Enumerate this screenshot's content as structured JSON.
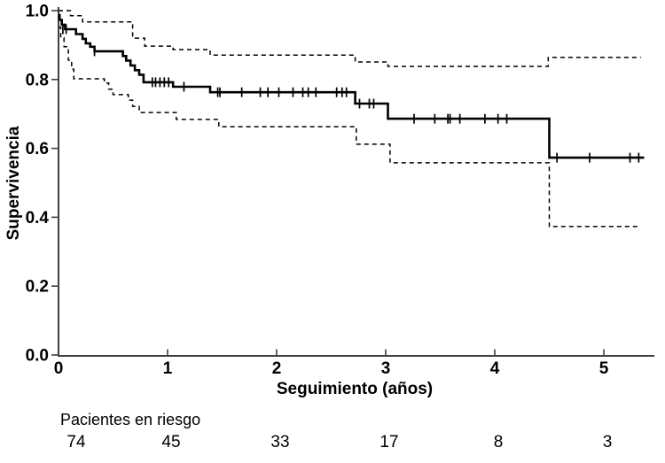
{
  "chart_data": {
    "type": "line",
    "subtype": "kaplan-meier-step",
    "title": "",
    "xlabel": "Seguimiento (años)",
    "ylabel": "Supervivencia",
    "xlim": [
      0,
      5.45
    ],
    "ylim": [
      0.0,
      1.0
    ],
    "grid": false,
    "legend": false,
    "x_ticks": [
      {
        "v": 0,
        "label": "0"
      },
      {
        "v": 1,
        "label": "1"
      },
      {
        "v": 2,
        "label": "2"
      },
      {
        "v": 3,
        "label": "3"
      },
      {
        "v": 4,
        "label": "4"
      },
      {
        "v": 5,
        "label": "5"
      }
    ],
    "y_ticks": [
      {
        "v": 1.0,
        "label": "1.0"
      },
      {
        "v": 0.8,
        "label": "0.8"
      },
      {
        "v": 0.6,
        "label": "0.6"
      },
      {
        "v": 0.4,
        "label": "0.4"
      },
      {
        "v": 0.2,
        "label": "0.2"
      },
      {
        "v": 0.0,
        "label": "0.0"
      }
    ],
    "series": [
      {
        "name": "supervivencia",
        "style": "solid",
        "color": "#000000",
        "end_t": 5.37,
        "steps": [
          [
            0.0,
            0.987
          ],
          [
            0.01,
            0.973
          ],
          [
            0.03,
            0.959
          ],
          [
            0.06,
            0.946
          ],
          [
            0.16,
            0.932
          ],
          [
            0.22,
            0.918
          ],
          [
            0.25,
            0.905
          ],
          [
            0.29,
            0.895
          ],
          [
            0.33,
            0.882
          ],
          [
            0.59,
            0.868
          ],
          [
            0.62,
            0.855
          ],
          [
            0.66,
            0.841
          ],
          [
            0.7,
            0.827
          ],
          [
            0.74,
            0.814
          ],
          [
            0.78,
            0.792
          ],
          [
            1.05,
            0.779
          ],
          [
            1.39,
            0.763
          ],
          [
            2.72,
            0.73
          ],
          [
            3.02,
            0.686
          ],
          [
            4.5,
            0.573
          ]
        ]
      },
      {
        "name": "ic-superior",
        "style": "dashed",
        "color": "#000000",
        "end_t": 5.34,
        "steps": [
          [
            0.0,
            1.0
          ],
          [
            0.11,
            0.985
          ],
          [
            0.22,
            0.967
          ],
          [
            0.68,
            0.92
          ],
          [
            0.79,
            0.897
          ],
          [
            1.05,
            0.887
          ],
          [
            1.39,
            0.871
          ],
          [
            2.72,
            0.851
          ],
          [
            3.02,
            0.838
          ],
          [
            4.49,
            0.864
          ]
        ]
      },
      {
        "name": "ic-inferior",
        "style": "dashed",
        "color": "#000000",
        "end_t": 5.34,
        "steps": [
          [
            0.0,
            0.952
          ],
          [
            0.02,
            0.921
          ],
          [
            0.05,
            0.895
          ],
          [
            0.09,
            0.856
          ],
          [
            0.12,
            0.83
          ],
          [
            0.14,
            0.802
          ],
          [
            0.42,
            0.79
          ],
          [
            0.46,
            0.772
          ],
          [
            0.5,
            0.756
          ],
          [
            0.64,
            0.74
          ],
          [
            0.68,
            0.722
          ],
          [
            0.74,
            0.704
          ],
          [
            1.08,
            0.684
          ],
          [
            1.47,
            0.663
          ],
          [
            2.73,
            0.612
          ],
          [
            3.04,
            0.558
          ],
          [
            4.5,
            0.373
          ]
        ]
      }
    ],
    "censor_marks": [
      [
        0.04,
        0.946
      ],
      [
        0.07,
        0.946
      ],
      [
        0.33,
        0.882
      ],
      [
        0.86,
        0.792
      ],
      [
        0.89,
        0.792
      ],
      [
        0.93,
        0.792
      ],
      [
        0.97,
        0.792
      ],
      [
        1.01,
        0.792
      ],
      [
        1.15,
        0.779
      ],
      [
        1.46,
        0.763
      ],
      [
        1.48,
        0.763
      ],
      [
        1.68,
        0.763
      ],
      [
        1.85,
        0.763
      ],
      [
        1.92,
        0.763
      ],
      [
        2.02,
        0.763
      ],
      [
        2.15,
        0.763
      ],
      [
        2.24,
        0.763
      ],
      [
        2.29,
        0.763
      ],
      [
        2.36,
        0.763
      ],
      [
        2.55,
        0.763
      ],
      [
        2.6,
        0.763
      ],
      [
        2.64,
        0.763
      ],
      [
        2.76,
        0.73
      ],
      [
        2.85,
        0.73
      ],
      [
        2.89,
        0.73
      ],
      [
        3.26,
        0.686
      ],
      [
        3.45,
        0.686
      ],
      [
        3.57,
        0.686
      ],
      [
        3.59,
        0.686
      ],
      [
        3.68,
        0.686
      ],
      [
        3.91,
        0.686
      ],
      [
        4.03,
        0.686
      ],
      [
        4.11,
        0.686
      ],
      [
        4.57,
        0.573
      ],
      [
        4.87,
        0.573
      ],
      [
        5.24,
        0.573
      ],
      [
        5.32,
        0.573
      ]
    ],
    "risk_table": {
      "label": "Pacientes en riesgo",
      "times": [
        0,
        1,
        2,
        3,
        4,
        5
      ],
      "counts": [
        "74",
        "45",
        "33",
        "17",
        "8",
        "3"
      ]
    },
    "colors": {
      "curve": "#000000",
      "axis": "#404040",
      "background": "#ffffff"
    }
  }
}
